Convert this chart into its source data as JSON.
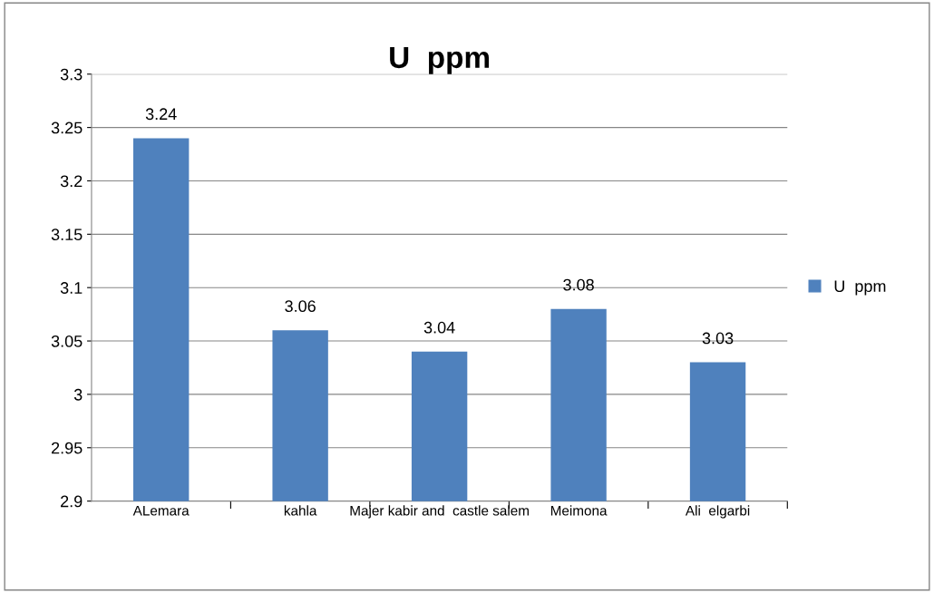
{
  "chart_data": {
    "type": "bar",
    "title": "U  ppm",
    "categories": [
      "ALemara",
      "kahla",
      "Majer kabir and  castle salem",
      "Meimona",
      "Ali  elgarbi"
    ],
    "series": [
      {
        "name": "U  ppm",
        "color": "#4f81bd",
        "values": [
          3.24,
          3.06,
          3.04,
          3.08,
          3.03
        ]
      }
    ],
    "ylim": [
      2.9,
      3.3
    ],
    "yticks": [
      {
        "value": 2.9,
        "label": "2.9"
      },
      {
        "value": 2.95,
        "label": "2.95"
      },
      {
        "value": 3.0,
        "label": "3"
      },
      {
        "value": 3.05,
        "label": "3.05"
      },
      {
        "value": 3.1,
        "label": "3.1"
      },
      {
        "value": 3.15,
        "label": "3.15"
      },
      {
        "value": 3.2,
        "label": "3.2"
      },
      {
        "value": 3.25,
        "label": "3.25"
      },
      {
        "value": 3.3,
        "label": "3.3"
      }
    ],
    "grid": "y",
    "legend": "right",
    "data_labels": true
  }
}
